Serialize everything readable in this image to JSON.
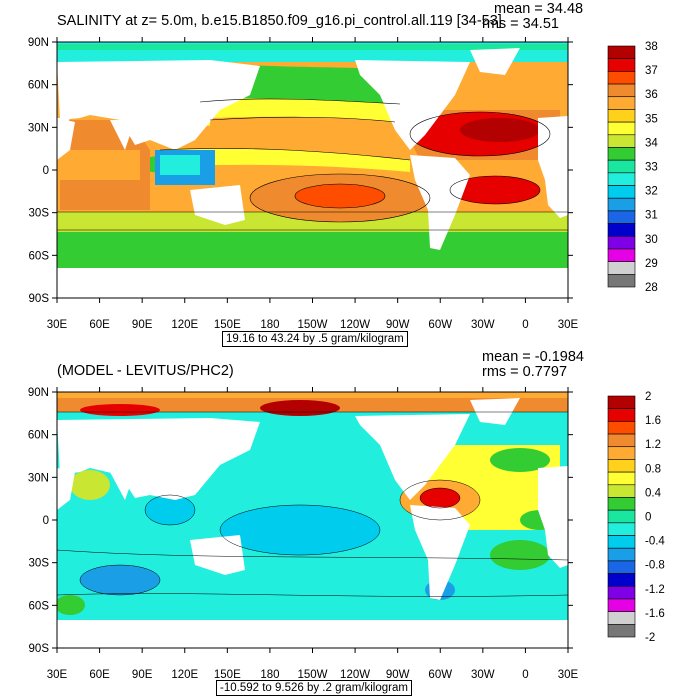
{
  "panels": [
    {
      "title": "SALINITY at z=   5.0m, b.e15.B1850.f09_g16.pi_control.all.119 [34-53]",
      "mean_label": "mean = 34.48",
      "rms_label": "rms = 34.51",
      "contour_info": "19.16 to 43.24 by .5 gram/kilogram",
      "colorbar": {
        "labels": [
          "38",
          "37",
          "36",
          "35",
          "34",
          "33",
          "32",
          "31",
          "30",
          "29",
          "28"
        ],
        "colors": [
          "#b30000",
          "#e60000",
          "#ff4d00",
          "#f08a2e",
          "#ffaa33",
          "#ffd11a",
          "#ffff33",
          "#c8e632",
          "#33cc33",
          "#1ae6a0",
          "#22eedd",
          "#00ccee",
          "#1a9fe6",
          "#1a66e6",
          "#0000cc",
          "#7f00e6",
          "#e600e6",
          "#d0d0d0",
          "#777777"
        ]
      }
    },
    {
      "title": "(MODEL - LEVITUS/PHC2)",
      "mean_label": "mean = -0.1984",
      "rms_label": "rms = 0.7797",
      "contour_info": "-10.592 to 9.526 by .2 gram/kilogram",
      "colorbar": {
        "labels": [
          "2",
          "1.6",
          "1.2",
          "0.8",
          "0.4",
          "0",
          "-0.4",
          "-0.8",
          "-1.2",
          "-1.6",
          "-2"
        ],
        "colors": [
          "#b30000",
          "#e60000",
          "#ff4d00",
          "#f08a2e",
          "#ffaa33",
          "#ffd11a",
          "#ffff33",
          "#c8e632",
          "#33cc33",
          "#1ae6a0",
          "#22eedd",
          "#00ccee",
          "#1a9fe6",
          "#1a66e6",
          "#0000cc",
          "#7f00e6",
          "#e600e6",
          "#d0d0d0",
          "#777777"
        ]
      }
    }
  ],
  "axes": {
    "lat_labels": [
      "90N",
      "60N",
      "30N",
      "0",
      "30S",
      "60S",
      "90S"
    ],
    "lon_labels": [
      "30E",
      "60E",
      "90E",
      "120E",
      "150E",
      "180",
      "150W",
      "120W",
      "90W",
      "60W",
      "30W",
      "0",
      "30E"
    ]
  },
  "colors": {
    "land": "#ffffff",
    "frame": "#000000"
  }
}
